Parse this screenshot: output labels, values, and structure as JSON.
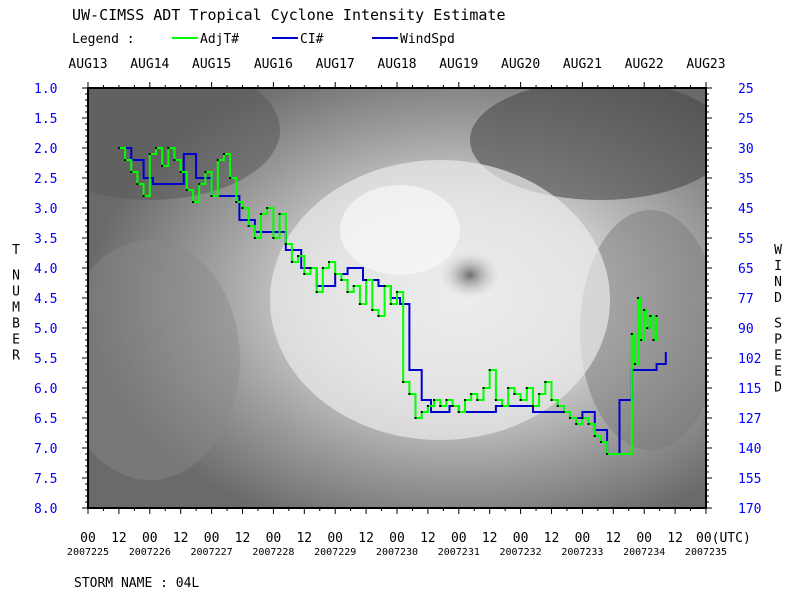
{
  "colors": {
    "adjt": "#00ff00",
    "ci": "#0000cc",
    "wind": "#0000cc",
    "left_ticks": "#0000ff",
    "right_ticks": "#0000ff",
    "text": "#000000",
    "plot_background": "satellite infrared imagery (grayscale)"
  },
  "chart_data": {
    "type": "line",
    "title": "UW-CIMSS ADT Tropical Cyclone Intensity Estimate",
    "legend": {
      "label": "Legend :",
      "placement": "top-left",
      "entries": [
        "AdjT#",
        "CI#",
        "WindSpd"
      ]
    },
    "ylabel_left": "T NUMBER",
    "ylabel_right": "WIND SPEED",
    "ylim_left": [
      1.0,
      8.0
    ],
    "left_ticks": [
      "1.0",
      "1.5",
      "2.0",
      "2.5",
      "3.0",
      "3.5",
      "4.0",
      "4.5",
      "5.0",
      "5.5",
      "6.0",
      "6.5",
      "7.0",
      "7.5",
      "8.0"
    ],
    "right_ticks": [
      "25",
      "25",
      "30",
      "35",
      "45",
      "55",
      "65",
      "77",
      "90",
      "102",
      "115",
      "127",
      "140",
      "155",
      "170"
    ],
    "top_dates": [
      "AUG13",
      "AUG14",
      "AUG15",
      "AUG16",
      "AUG17",
      "AUG18",
      "AUG19",
      "AUG20",
      "AUG21",
      "AUG22",
      "AUG23"
    ],
    "bottom_hours": [
      "00",
      "12",
      "00",
      "12",
      "00",
      "12",
      "00",
      "12",
      "00",
      "12",
      "00",
      "12",
      "00",
      "12",
      "00",
      "12",
      "00",
      "12",
      "00",
      "12",
      "00(UTC)"
    ],
    "julian_dates": [
      "2007225",
      "2007226",
      "2007227",
      "2007228",
      "2007229",
      "2007230",
      "2007231",
      "2007232",
      "2007233",
      "2007234",
      "2007235"
    ],
    "xlim_days_aug": [
      13,
      23
    ],
    "x_unit": "day of August 2007 (UTC)",
    "series": [
      {
        "name": "CI#",
        "x": [
          13.5,
          13.7,
          13.9,
          14.05,
          14.3,
          14.55,
          14.75,
          15.0,
          15.2,
          15.45,
          15.7,
          16.0,
          16.2,
          16.45,
          16.7,
          17.0,
          17.2,
          17.45,
          17.7,
          17.9,
          18.05,
          18.2,
          18.4,
          18.55,
          18.7,
          18.85,
          19.0,
          19.3,
          19.6,
          19.9,
          20.2,
          20.5,
          20.8,
          21.0,
          21.2,
          21.4,
          21.6,
          21.8,
          22.0,
          22.2,
          22.35
        ],
        "y": [
          2.0,
          2.2,
          2.5,
          2.6,
          2.6,
          2.1,
          2.5,
          2.8,
          2.8,
          3.2,
          3.4,
          3.4,
          3.7,
          4.0,
          4.3,
          4.1,
          4.0,
          4.2,
          4.3,
          4.5,
          4.6,
          5.7,
          6.2,
          6.4,
          6.4,
          6.3,
          6.4,
          6.4,
          6.3,
          6.3,
          6.4,
          6.4,
          6.5,
          6.4,
          6.7,
          7.1,
          6.2,
          5.7,
          5.7,
          5.6,
          5.4
        ]
      },
      {
        "name": "AdjT#",
        "x": [
          13.5,
          13.6,
          13.7,
          13.8,
          13.9,
          14.0,
          14.1,
          14.2,
          14.3,
          14.4,
          14.5,
          14.6,
          14.7,
          14.8,
          14.9,
          15.0,
          15.1,
          15.2,
          15.3,
          15.4,
          15.5,
          15.6,
          15.7,
          15.8,
          15.9,
          16.0,
          16.1,
          16.2,
          16.3,
          16.4,
          16.5,
          16.6,
          16.7,
          16.8,
          16.9,
          17.0,
          17.1,
          17.2,
          17.3,
          17.4,
          17.5,
          17.6,
          17.7,
          17.8,
          17.9,
          18.0,
          18.1,
          18.2,
          18.3,
          18.4,
          18.5,
          18.6,
          18.7,
          18.8,
          18.9,
          19.0,
          19.1,
          19.2,
          19.3,
          19.4,
          19.5,
          19.6,
          19.7,
          19.8,
          19.9,
          20.0,
          20.1,
          20.2,
          20.3,
          20.4,
          20.5,
          20.6,
          20.7,
          20.8,
          20.9,
          21.0,
          21.1,
          21.2,
          21.3,
          21.4,
          21.8,
          21.85,
          21.9,
          21.95,
          22.0,
          22.05,
          22.1,
          22.15,
          22.2
        ],
        "y": [
          2.0,
          2.2,
          2.4,
          2.6,
          2.8,
          2.1,
          2.0,
          2.3,
          2.0,
          2.2,
          2.4,
          2.7,
          2.9,
          2.6,
          2.4,
          2.8,
          2.2,
          2.1,
          2.5,
          2.9,
          3.0,
          3.3,
          3.5,
          3.1,
          3.0,
          3.5,
          3.1,
          3.6,
          3.9,
          3.8,
          4.1,
          4.0,
          4.4,
          4.0,
          3.9,
          4.1,
          4.2,
          4.4,
          4.3,
          4.6,
          4.2,
          4.7,
          4.8,
          4.3,
          4.6,
          4.4,
          5.9,
          6.1,
          6.5,
          6.4,
          6.3,
          6.2,
          6.3,
          6.2,
          6.3,
          6.4,
          6.2,
          6.1,
          6.2,
          6.0,
          5.7,
          6.2,
          6.3,
          6.0,
          6.1,
          6.2,
          6.0,
          6.3,
          6.1,
          5.9,
          6.2,
          6.3,
          6.4,
          6.5,
          6.6,
          6.5,
          6.6,
          6.8,
          6.9,
          7.1,
          5.1,
          5.6,
          4.5,
          5.2,
          4.7,
          5.0,
          4.8,
          5.2,
          4.8
        ]
      },
      {
        "name": "WindSpd",
        "x": [],
        "y": []
      }
    ],
    "grid": false
  },
  "footer": {
    "storm_label": "STORM NAME : 04L"
  }
}
